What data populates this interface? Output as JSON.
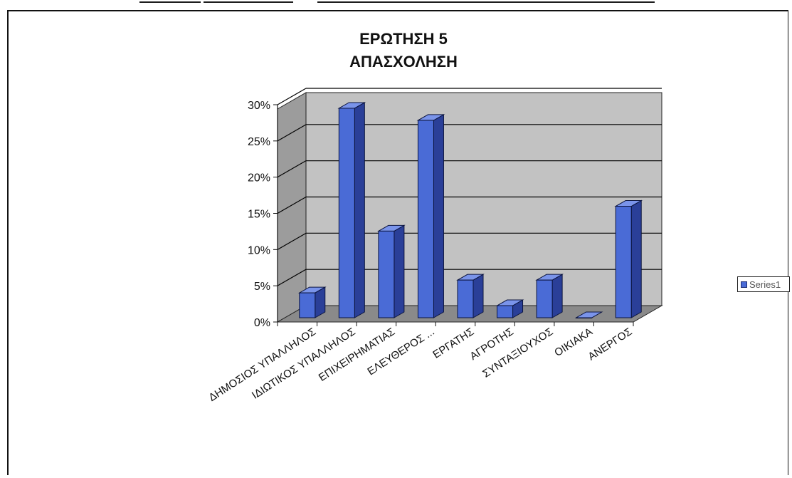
{
  "chart_data": {
    "type": "bar",
    "title_lines": [
      "ΕΡΩΤΗΣΗ 5",
      "ΑΠΑΣΧΟΛΗΣΗ"
    ],
    "categories": [
      "ΔΗΜΟΣΙΟΣ ΥΠΑΛΛΗΛΟΣ",
      "ΙΔΙΩΤΙΚΟΣ ΥΠΑΛΛΗΛΟΣ",
      "ΕΠΙΧΕΙΡΗΜΑΤΙΑΣ",
      "ΕΛΕΥΘΕΡΟΣ ...",
      "ΕΡΓΑΤΗΣ",
      "ΑΓΡΟΤΗΣ",
      "ΣΥΝΤΑΞΙΟΥΧΟΣ",
      "ΟΙΚΙΑΚΑ",
      "ΑΝΕΡΓΟΣ"
    ],
    "series": [
      {
        "name": "Series1",
        "values": [
          3.5,
          29.5,
          12.2,
          27.8,
          5.3,
          1.7,
          5.3,
          0,
          15.7
        ]
      }
    ],
    "yticks": [
      "0%",
      "5%",
      "10%",
      "15%",
      "20%",
      "25%",
      "30%"
    ],
    "ylim": [
      0,
      30
    ],
    "grid": true,
    "legend": "right",
    "colors": {
      "bar_front": "#4a6bd6",
      "bar_side": "#2a3f98",
      "bar_top": "#7a94ea",
      "bar_outline": "#0c153f",
      "wall": "#c2c2c2",
      "side_wall": "#9c9c9c",
      "floor": "#8a8a8a",
      "grid": "#000000"
    }
  },
  "legend": {
    "label": "Series1"
  }
}
